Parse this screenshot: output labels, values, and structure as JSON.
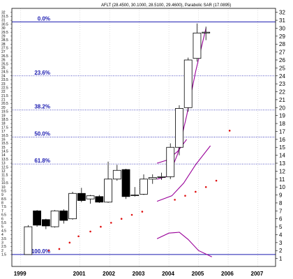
{
  "chart_data": {
    "type": "candlestick",
    "title": "AFLT (28.4500, 30.1000, 28.5100, 29.4600), Parabolic SAR (17.0895)",
    "x_ticks": [
      "1999",
      "2001",
      "2002",
      "2003",
      "2004",
      "2005",
      "2006",
      "2007"
    ],
    "y_ticks": [
      "1",
      "2",
      "3",
      "4",
      "5",
      "6",
      "7",
      "8",
      "9",
      "10",
      "11",
      "12",
      "13",
      "14",
      "15",
      "16",
      "17",
      "18",
      "19",
      "20",
      "21",
      "22",
      "23",
      "24",
      "25",
      "26",
      "27",
      "28",
      "29",
      "30",
      "31",
      "32"
    ],
    "y_range": [
      0,
      32.5
    ],
    "left_ticks": [
      "1.5",
      "2",
      "2.5",
      "3",
      "3.5",
      "4",
      "4.5",
      "5",
      "5.5",
      "6",
      "6.5",
      "7",
      "7.5",
      "8",
      "8.5",
      "9",
      "9.5",
      "10",
      "10.5",
      "11",
      "11.5",
      "12",
      "12.5",
      "13",
      "13.5",
      "14",
      "14.5",
      "15",
      "15.5",
      "16",
      "16.5",
      "17",
      "17.5",
      "18",
      "18.5",
      "19",
      "19.5",
      "20",
      "20.5",
      "21",
      "21.5",
      "22",
      "22.5",
      "23",
      "23.5",
      "24",
      "24.5",
      "25",
      "25.5",
      "26",
      "26.5",
      "27",
      "27.5",
      "28",
      "28.5",
      "29",
      "29.5",
      "30",
      "30.5",
      "31",
      "31.5",
      "32"
    ],
    "fibonacci": [
      {
        "label": "0.0%",
        "value": 30.8,
        "style": "solid"
      },
      {
        "label": "23.6%",
        "value": 24.0,
        "style": "dotted"
      },
      {
        "label": "38.2%",
        "value": 19.7,
        "style": "dotted"
      },
      {
        "label": "50.0%",
        "value": 16.3,
        "style": "dotted"
      },
      {
        "label": "61.8%",
        "value": 12.9,
        "style": "dotted"
      },
      {
        "label": "100.0%",
        "value": 1.5,
        "style": "solid"
      }
    ],
    "candles": [
      {
        "t": 1999.25,
        "o": 1.5,
        "h": 5.2,
        "l": 1.5,
        "c": 5.0
      },
      {
        "t": 1999.55,
        "o": 7.0,
        "h": 7.1,
        "l": 5.0,
        "c": 5.2
      },
      {
        "t": 1999.85,
        "o": 5.9,
        "h": 6.0,
        "l": 4.7,
        "c": 5.1
      },
      {
        "t": 2000.15,
        "o": 5.0,
        "h": 7.1,
        "l": 4.9,
        "c": 7.0
      },
      {
        "t": 2000.45,
        "o": 7.0,
        "h": 7.2,
        "l": 5.4,
        "c": 5.8
      },
      {
        "t": 2000.75,
        "o": 6.0,
        "h": 9.4,
        "l": 5.9,
        "c": 9.2
      },
      {
        "t": 2001.05,
        "o": 9.2,
        "h": 9.9,
        "l": 8.1,
        "c": 8.3
      },
      {
        "t": 2001.35,
        "o": 8.5,
        "h": 9.0,
        "l": 7.9,
        "c": 8.9
      },
      {
        "t": 2001.65,
        "o": 8.8,
        "h": 9.0,
        "l": 8.0,
        "c": 8.1
      },
      {
        "t": 2001.95,
        "o": 8.1,
        "h": 13.2,
        "l": 8.0,
        "c": 11.0
      },
      {
        "t": 2002.25,
        "o": 11.0,
        "h": 12.8,
        "l": 10.8,
        "c": 12.1
      },
      {
        "t": 2002.55,
        "o": 12.2,
        "h": 12.3,
        "l": 8.5,
        "c": 8.8
      },
      {
        "t": 2002.85,
        "o": 9.0,
        "h": 10.0,
        "l": 8.8,
        "c": 9.0
      },
      {
        "t": 2003.15,
        "o": 9.1,
        "h": 11.6,
        "l": 9.0,
        "c": 11.0
      },
      {
        "t": 2003.45,
        "o": 11.0,
        "h": 11.6,
        "l": 10.4,
        "c": 11.2
      },
      {
        "t": 2003.75,
        "o": 11.2,
        "h": 11.8,
        "l": 10.9,
        "c": 11.3
      },
      {
        "t": 2004.05,
        "o": 11.3,
        "h": 15.5,
        "l": 11.0,
        "c": 15.0
      },
      {
        "t": 2004.35,
        "o": 15.0,
        "h": 20.3,
        "l": 14.0,
        "c": 19.9
      },
      {
        "t": 2004.65,
        "o": 20.0,
        "h": 26.3,
        "l": 19.5,
        "c": 26.0
      },
      {
        "t": 2004.95,
        "o": 26.2,
        "h": 30.6,
        "l": 25.8,
        "c": 29.4
      },
      {
        "t": 2005.25,
        "o": 29.4,
        "h": 30.2,
        "l": 28.5,
        "c": 29.5
      }
    ],
    "sar": [
      {
        "t": 1999.95,
        "v": 2.0
      },
      {
        "t": 2000.3,
        "v": 2.2
      },
      {
        "t": 2000.65,
        "v": 3.0
      },
      {
        "t": 2000.95,
        "v": 3.8
      },
      {
        "t": 2001.35,
        "v": 4.4
      },
      {
        "t": 2001.7,
        "v": 5.0
      },
      {
        "t": 2002.05,
        "v": 5.5
      },
      {
        "t": 2002.4,
        "v": 6.0
      },
      {
        "t": 2002.75,
        "v": 6.5
      },
      {
        "t": 2003.1,
        "v": 6.9
      },
      {
        "t": 2004.2,
        "v": 8.4
      },
      {
        "t": 2004.55,
        "v": 8.9
      },
      {
        "t": 2004.9,
        "v": 9.4
      },
      {
        "t": 2005.25,
        "v": 10.0
      },
      {
        "t": 2005.6,
        "v": 10.8
      },
      {
        "t": 2006.05,
        "v": 17.1
      }
    ],
    "ma_lines": [
      {
        "name": "ma-fast",
        "points": [
          [
            2003.6,
            11.0
          ],
          [
            2004.0,
            11.4
          ],
          [
            2004.3,
            14.2
          ],
          [
            2004.6,
            19.0
          ],
          [
            2004.9,
            24.5
          ],
          [
            2005.25,
            30.0
          ]
        ]
      },
      {
        "name": "ma-upper",
        "points": [
          [
            2003.6,
            13.0
          ],
          [
            2003.95,
            13.4
          ],
          [
            2004.3,
            14.5
          ],
          [
            2004.6,
            16.0
          ]
        ]
      },
      {
        "name": "ma-lower",
        "points": [
          [
            2003.6,
            8.2
          ],
          [
            2004.1,
            8.9
          ],
          [
            2004.5,
            10.5
          ],
          [
            2004.9,
            12.8
          ],
          [
            2005.4,
            15.2
          ]
        ]
      },
      {
        "name": "ma-bottom",
        "points": [
          [
            2003.6,
            3.5
          ],
          [
            2004.0,
            4.2
          ],
          [
            2004.35,
            4.3
          ],
          [
            2004.65,
            3.4
          ],
          [
            2005.0,
            2.0
          ],
          [
            2005.45,
            1.2
          ]
        ]
      }
    ],
    "colors": {
      "candle_up": "#ffffff",
      "candle_down": "#000000",
      "fib_line": "#1a1ab0",
      "sar": "#e01010",
      "ma": "#990099"
    }
  }
}
